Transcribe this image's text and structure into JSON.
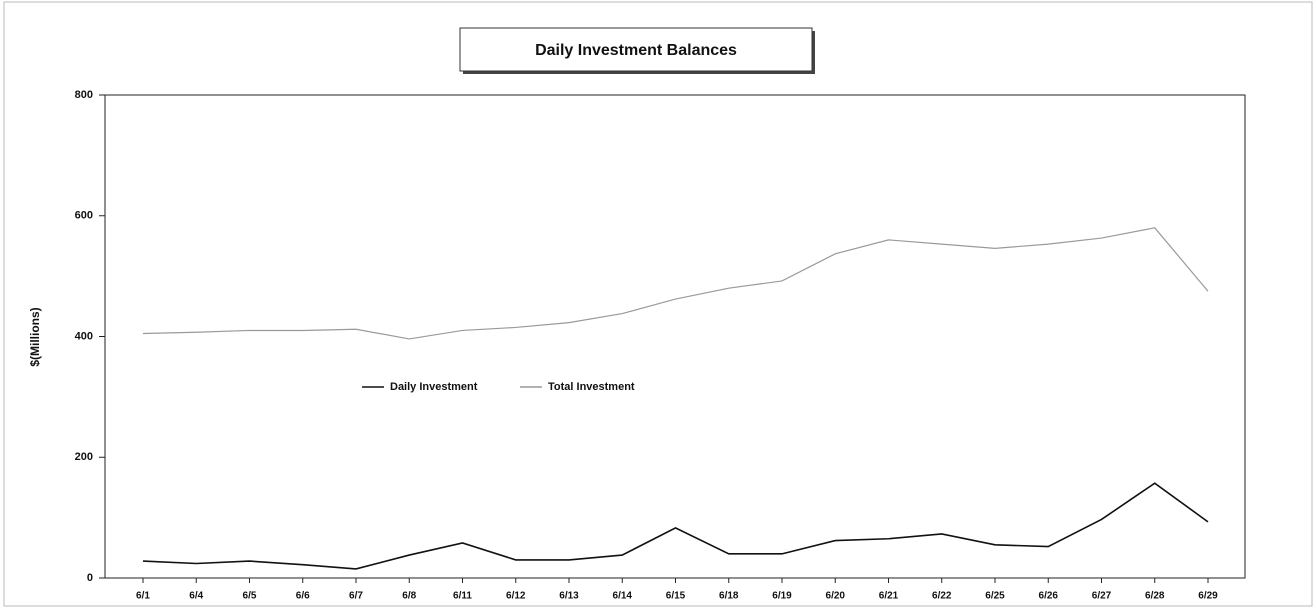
{
  "chart_data": {
    "type": "line",
    "title": "Daily Investment Balances",
    "ylabel": "$(Millions)",
    "categories": [
      "6/1",
      "6/4",
      "6/5",
      "6/6",
      "6/7",
      "6/8",
      "6/11",
      "6/12",
      "6/13",
      "6/14",
      "6/15",
      "6/18",
      "6/19",
      "6/20",
      "6/21",
      "6/22",
      "6/25",
      "6/26",
      "6/27",
      "6/28",
      "6/29"
    ],
    "series": [
      {
        "name": "Daily Investment",
        "color": "#111111",
        "values": [
          28,
          24,
          28,
          22,
          15,
          38,
          58,
          30,
          30,
          38,
          83,
          40,
          40,
          62,
          65,
          73,
          55,
          52,
          97,
          157,
          93
        ]
      },
      {
        "name": "Total Investment",
        "color": "#9a9a9a",
        "values": [
          405,
          407,
          410,
          410,
          412,
          396,
          410,
          415,
          423,
          438,
          462,
          480,
          492,
          537,
          560,
          553,
          546,
          553,
          563,
          580,
          475
        ]
      }
    ],
    "ylim": [
      0,
      800
    ],
    "yticks": [
      0,
      200,
      400,
      600,
      800
    ],
    "legend": "center"
  }
}
